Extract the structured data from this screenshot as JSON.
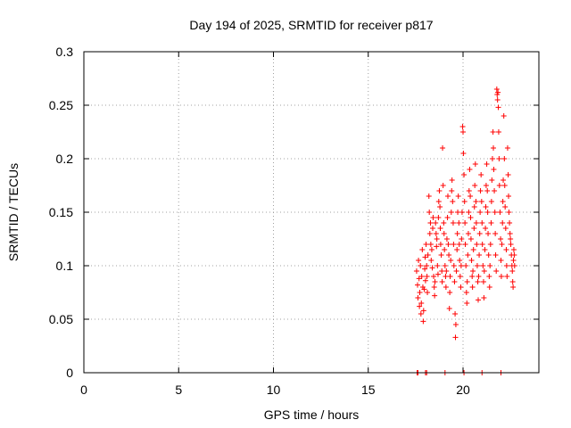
{
  "chart_data": {
    "type": "scatter",
    "title": "Day 194 of 2025, SRMTID for receiver p817",
    "xlabel": "GPS time / hours",
    "ylabel": "SRMTID / TECUs",
    "xlim": [
      0,
      24
    ],
    "ylim": [
      0,
      0.3
    ],
    "x_ticks": [
      0,
      5,
      10,
      15,
      20
    ],
    "x_tick_labels": [
      "0",
      "5",
      "10",
      "15",
      "20"
    ],
    "y_ticks": [
      0,
      0.05,
      0.1,
      0.15,
      0.2,
      0.25,
      0.3
    ],
    "y_tick_labels": [
      "0",
      "0.05",
      "0.1",
      "0.15",
      "0.2",
      "0.25",
      "0.3"
    ],
    "grid": true,
    "marker": "plus",
    "colors": {
      "series": "#ff0000",
      "grid": "#a0a0a0",
      "frame": "#000000"
    },
    "series": [
      {
        "name": "SRMTID",
        "points": [
          [
            17.55,
            0.095
          ],
          [
            17.6,
            0.082
          ],
          [
            17.62,
            0.07
          ],
          [
            17.65,
            0.105
          ],
          [
            17.68,
            0.088
          ],
          [
            17.7,
            0.062
          ],
          [
            17.72,
            0.075
          ],
          [
            17.75,
            0.1
          ],
          [
            17.78,
            0.055
          ],
          [
            17.8,
            0.065
          ],
          [
            17.82,
            0.09
          ],
          [
            17.85,
            0.115
          ],
          [
            17.88,
            0.08
          ],
          [
            17.9,
            0.048
          ],
          [
            17.92,
            0.058
          ],
          [
            17.95,
            0.078
          ],
          [
            17.98,
            0.097
          ],
          [
            18.0,
            0.108
          ],
          [
            18.02,
            0.086
          ],
          [
            18.05,
            0.12
          ],
          [
            18.08,
            0.1
          ],
          [
            18.1,
            0.09
          ],
          [
            18.12,
            0.075
          ],
          [
            18.15,
            0.11
          ],
          [
            18.2,
            0.165
          ],
          [
            18.22,
            0.15
          ],
          [
            18.25,
            0.13
          ],
          [
            18.28,
            0.14
          ],
          [
            18.3,
            0.12
          ],
          [
            18.32,
            0.105
          ],
          [
            18.35,
            0.115
          ],
          [
            18.38,
            0.098
          ],
          [
            18.4,
            0.135
          ],
          [
            18.42,
            0.145
          ],
          [
            18.45,
            0.09
          ],
          [
            18.48,
            0.08
          ],
          [
            18.5,
            0.072
          ],
          [
            18.52,
            0.085
          ],
          [
            18.55,
            0.14
          ],
          [
            18.58,
            0.13
          ],
          [
            18.6,
            0.118
          ],
          [
            18.62,
            0.125
          ],
          [
            18.65,
            0.1
          ],
          [
            18.68,
            0.092
          ],
          [
            18.7,
            0.145
          ],
          [
            18.72,
            0.16
          ],
          [
            18.75,
            0.17
          ],
          [
            18.78,
            0.155
          ],
          [
            18.8,
            0.135
          ],
          [
            18.82,
            0.12
          ],
          [
            18.85,
            0.11
          ],
          [
            18.88,
            0.095
          ],
          [
            18.9,
            0.085
          ],
          [
            18.92,
            0.21
          ],
          [
            18.95,
            0.175
          ],
          [
            18.98,
            0.14
          ],
          [
            19.0,
            0.13
          ],
          [
            19.02,
            0.115
          ],
          [
            19.05,
            0.1
          ],
          [
            19.08,
            0.09
          ],
          [
            19.1,
            0.08
          ],
          [
            19.12,
            0.095
          ],
          [
            19.15,
            0.125
          ],
          [
            19.18,
            0.145
          ],
          [
            19.2,
            0.165
          ],
          [
            19.22,
            0.12
          ],
          [
            19.25,
            0.11
          ],
          [
            19.28,
            0.06
          ],
          [
            19.3,
            0.075
          ],
          [
            19.32,
            0.09
          ],
          [
            19.35,
            0.105
          ],
          [
            19.38,
            0.15
          ],
          [
            19.4,
            0.17
          ],
          [
            19.42,
            0.18
          ],
          [
            19.45,
            0.16
          ],
          [
            19.48,
            0.14
          ],
          [
            19.5,
            0.12
          ],
          [
            19.52,
            0.1
          ],
          [
            19.55,
            0.085
          ],
          [
            19.58,
            0.055
          ],
          [
            19.6,
            0.033
          ],
          [
            19.62,
            0.045
          ],
          [
            19.65,
            0.095
          ],
          [
            19.68,
            0.115
          ],
          [
            19.7,
            0.13
          ],
          [
            19.72,
            0.15
          ],
          [
            19.75,
            0.165
          ],
          [
            19.78,
            0.14
          ],
          [
            19.8,
            0.12
          ],
          [
            19.82,
            0.105
          ],
          [
            19.85,
            0.09
          ],
          [
            19.88,
            0.08
          ],
          [
            19.9,
            0.1
          ],
          [
            19.92,
            0.125
          ],
          [
            19.95,
            0.15
          ],
          [
            19.98,
            0.23
          ],
          [
            20.0,
            0.225
          ],
          [
            20.02,
            0.205
          ],
          [
            20.05,
            0.185
          ],
          [
            20.08,
            0.16
          ],
          [
            20.1,
            0.14
          ],
          [
            20.12,
            0.12
          ],
          [
            20.15,
            0.1
          ],
          [
            20.18,
            0.075
          ],
          [
            20.2,
            0.065
          ],
          [
            20.22,
            0.085
          ],
          [
            20.25,
            0.11
          ],
          [
            20.28,
            0.13
          ],
          [
            20.3,
            0.15
          ],
          [
            20.32,
            0.17
          ],
          [
            20.35,
            0.19
          ],
          [
            20.38,
            0.165
          ],
          [
            20.4,
            0.145
          ],
          [
            20.42,
            0.125
          ],
          [
            20.45,
            0.105
          ],
          [
            20.48,
            0.09
          ],
          [
            20.5,
            0.08
          ],
          [
            20.52,
            0.095
          ],
          [
            20.55,
            0.115
          ],
          [
            20.58,
            0.135
          ],
          [
            20.6,
            0.155
          ],
          [
            20.62,
            0.175
          ],
          [
            20.65,
            0.195
          ],
          [
            20.68,
            0.16
          ],
          [
            20.7,
            0.14
          ],
          [
            20.72,
            0.12
          ],
          [
            20.75,
            0.1
          ],
          [
            20.78,
            0.085
          ],
          [
            20.8,
            0.068
          ],
          [
            20.82,
            0.09
          ],
          [
            20.85,
            0.11
          ],
          [
            20.88,
            0.13
          ],
          [
            20.9,
            0.15
          ],
          [
            20.92,
            0.17
          ],
          [
            20.95,
            0.185
          ],
          [
            20.98,
            0.16
          ],
          [
            21.0,
            0.14
          ],
          [
            21.02,
            0.12
          ],
          [
            21.05,
            0.1
          ],
          [
            21.08,
            0.085
          ],
          [
            21.1,
            0.07
          ],
          [
            21.12,
            0.095
          ],
          [
            21.15,
            0.115
          ],
          [
            21.18,
            0.135
          ],
          [
            21.2,
            0.155
          ],
          [
            21.22,
            0.175
          ],
          [
            21.25,
            0.195
          ],
          [
            21.28,
            0.17
          ],
          [
            21.3,
            0.15
          ],
          [
            21.32,
            0.13
          ],
          [
            21.35,
            0.11
          ],
          [
            21.38,
            0.09
          ],
          [
            21.4,
            0.08
          ],
          [
            21.42,
            0.1
          ],
          [
            21.45,
            0.12
          ],
          [
            21.48,
            0.14
          ],
          [
            21.5,
            0.16
          ],
          [
            21.52,
            0.18
          ],
          [
            21.55,
            0.2
          ],
          [
            21.58,
            0.225
          ],
          [
            21.6,
            0.21
          ],
          [
            21.62,
            0.19
          ],
          [
            21.65,
            0.17
          ],
          [
            21.68,
            0.15
          ],
          [
            21.7,
            0.13
          ],
          [
            21.72,
            0.11
          ],
          [
            21.75,
            0.095
          ],
          [
            21.78,
            0.265
          ],
          [
            21.8,
            0.26
          ],
          [
            21.82,
            0.255
          ],
          [
            21.84,
            0.262
          ],
          [
            21.86,
            0.248
          ],
          [
            21.88,
            0.225
          ],
          [
            21.9,
            0.2
          ],
          [
            21.92,
            0.175
          ],
          [
            21.95,
            0.15
          ],
          [
            21.98,
            0.125
          ],
          [
            22.0,
            0.105
          ],
          [
            22.02,
            0.09
          ],
          [
            22.05,
            0.12
          ],
          [
            22.08,
            0.14
          ],
          [
            22.1,
            0.16
          ],
          [
            22.12,
            0.18
          ],
          [
            22.15,
            0.24
          ],
          [
            22.18,
            0.2
          ],
          [
            22.2,
            0.175
          ],
          [
            22.22,
            0.155
          ],
          [
            22.25,
            0.135
          ],
          [
            22.28,
            0.115
          ],
          [
            22.3,
            0.1
          ],
          [
            22.32,
            0.09
          ],
          [
            22.35,
            0.21
          ],
          [
            22.38,
            0.185
          ],
          [
            22.4,
            0.165
          ],
          [
            22.42,
            0.15
          ],
          [
            22.45,
            0.14
          ],
          [
            22.48,
            0.13
          ],
          [
            22.5,
            0.125
          ],
          [
            22.52,
            0.12
          ],
          [
            22.55,
            0.11
          ],
          [
            22.58,
            0.1
          ],
          [
            22.6,
            0.095
          ],
          [
            22.62,
            0.085
          ],
          [
            22.64,
            0.08
          ],
          [
            22.66,
            0.105
          ],
          [
            22.68,
            0.115
          ],
          [
            22.7,
            0.11
          ],
          [
            22.72,
            0.1
          ],
          [
            17.58,
            0.0
          ],
          [
            17.62,
            0.0
          ],
          [
            18.02,
            0.0
          ],
          [
            18.08,
            0.0
          ],
          [
            19.05,
            0.0
          ],
          [
            20.05,
            0.0
          ],
          [
            21.0,
            0.0
          ],
          [
            22.0,
            0.0
          ]
        ]
      }
    ]
  }
}
